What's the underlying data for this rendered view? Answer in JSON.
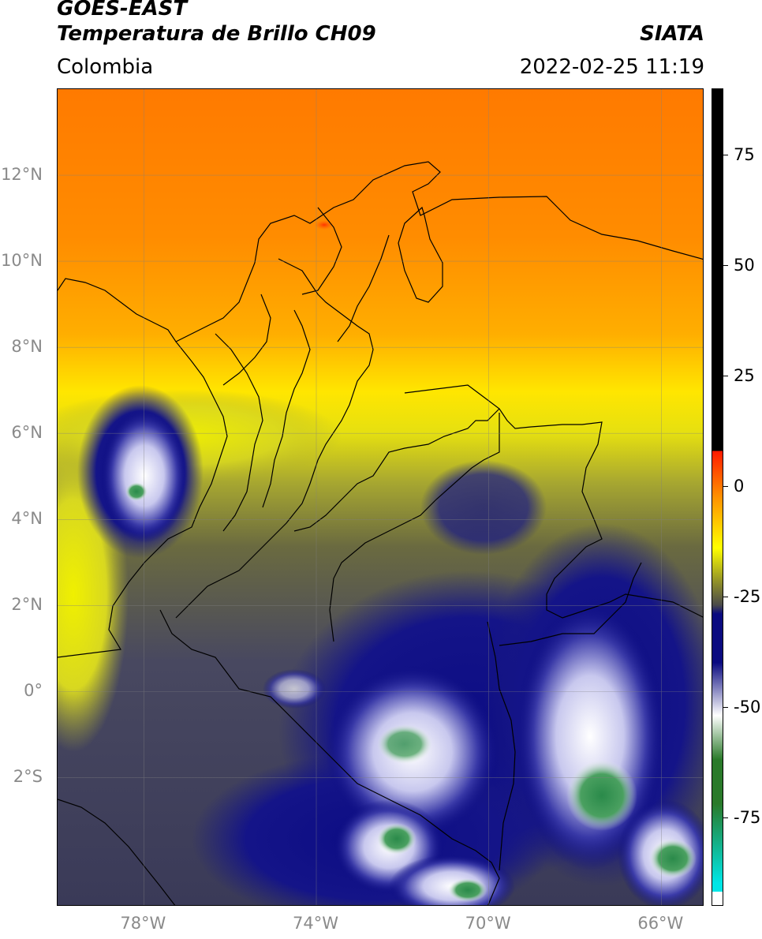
{
  "header": {
    "satellite": "GOES-EAST",
    "product": "Temperatura de Brillo CH09",
    "region": "Colombia",
    "agency": "SIATA",
    "datetime": "2022-02-25 11:19"
  },
  "map": {
    "lon_range": [
      -80,
      -65
    ],
    "lat_range": [
      -5,
      14
    ],
    "lat_ticks": [
      {
        "value": 12,
        "label": "12°N"
      },
      {
        "value": 10,
        "label": "10°N"
      },
      {
        "value": 8,
        "label": "8°N"
      },
      {
        "value": 6,
        "label": "6°N"
      },
      {
        "value": 4,
        "label": "4°N"
      },
      {
        "value": 2,
        "label": "2°N"
      },
      {
        "value": 0,
        "label": "0°"
      },
      {
        "value": -2,
        "label": "2°S"
      }
    ],
    "lon_ticks": [
      {
        "value": -78,
        "label": "78°W"
      },
      {
        "value": -74,
        "label": "74°W"
      },
      {
        "value": -70,
        "label": "70°W"
      },
      {
        "value": -66,
        "label": "66°W"
      }
    ],
    "grid": true
  },
  "colorbar": {
    "range": [
      -95,
      90
    ],
    "ticks": [
      {
        "value": 75,
        "label": "75"
      },
      {
        "value": 50,
        "label": "50"
      },
      {
        "value": 25,
        "label": "25"
      },
      {
        "value": 0,
        "label": "0"
      },
      {
        "value": -25,
        "label": "-25"
      },
      {
        "value": -50,
        "label": "-50"
      },
      {
        "value": -75,
        "label": "-75"
      }
    ],
    "colors": {
      "black": "#000000",
      "red": "#ff1a00",
      "orange": "#ff8c00",
      "yellow": "#ffff00",
      "olive": "#8c8c2a",
      "gray": "#4a4a4a",
      "navy": "#0a0a80",
      "white": "#ffffff",
      "green": "#2a7a2a",
      "cyan": "#00e6e6"
    }
  }
}
